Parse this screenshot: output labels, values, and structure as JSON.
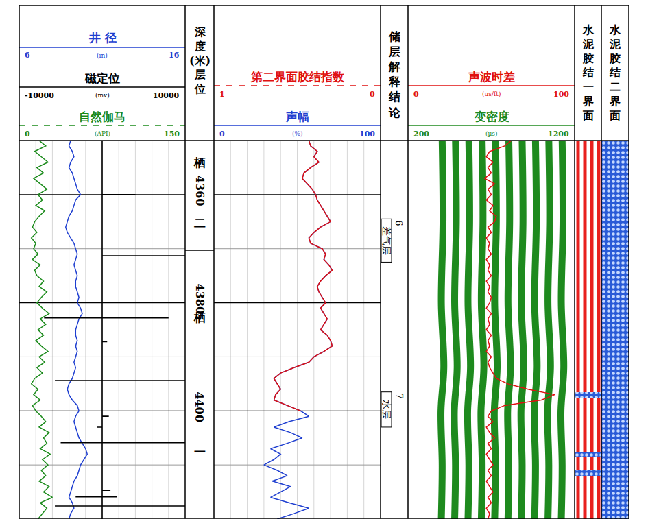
{
  "chart_data": {
    "type": "well_log",
    "ylim": [
      4350,
      4420
    ],
    "yticks": [
      4360,
      4380,
      4400
    ],
    "yticks_minor": [
      4370,
      4390,
      4410
    ],
    "grid": true,
    "depth_title": "深度(米)",
    "zone_title": "层位",
    "depth": [
      4350,
      4351,
      4352,
      4353,
      4354,
      4355,
      4356,
      4357,
      4358,
      4359,
      4360,
      4361,
      4362,
      4363,
      4364,
      4365,
      4366,
      4367,
      4368,
      4369,
      4370,
      4371,
      4372,
      4373,
      4374,
      4375,
      4376,
      4377,
      4378,
      4379,
      4380,
      4381,
      4382,
      4383,
      4384,
      4385,
      4386,
      4387,
      4388,
      4389,
      4390,
      4391,
      4392,
      4393,
      4394,
      4395,
      4396,
      4397,
      4398,
      4399,
      4400,
      4401,
      4402,
      4403,
      4404,
      4405,
      4406,
      4407,
      4408,
      4409,
      4410,
      4411,
      4412,
      4413,
      4414,
      4415,
      4416,
      4417,
      4418,
      4419,
      4420
    ],
    "caliper": {
      "name": "井 径",
      "unit": "(in)",
      "xlim": [
        6,
        16
      ],
      "color": "#1f3fd0",
      "line_style": "solid",
      "values": [
        9.1,
        9.0,
        9.2,
        9.3,
        9.1,
        9.0,
        9.2,
        9.3,
        9.4,
        9.5,
        9.7,
        9.4,
        9.3,
        9.2,
        9.0,
        8.9,
        8.8,
        8.9,
        9.1,
        9.3,
        9.4,
        9.5,
        9.4,
        9.3,
        9.4,
        9.5,
        9.4,
        9.4,
        9.5,
        9.6,
        9.5,
        9.7,
        9.8,
        9.6,
        9.5,
        9.4,
        9.4,
        9.5,
        9.4,
        9.5,
        9.4,
        9.3,
        9.4,
        9.3,
        9.2,
        9.0,
        8.9,
        9.0,
        9.2,
        9.5,
        9.6,
        9.4,
        9.3,
        9.4,
        9.5,
        9.6,
        9.8,
        10.0,
        10.1,
        9.9,
        9.7,
        9.6,
        9.5,
        9.3,
        9.2,
        9.1,
        9.0,
        9.2,
        9.3,
        9.1,
        9.0
      ]
    },
    "ccl": {
      "name": "磁定位",
      "unit": "(mv)",
      "xlim": [
        -10000,
        10000
      ],
      "color": "#000000",
      "line_style": "solid",
      "spike_depths": [
        4360.0,
        4371.3,
        4382.8,
        4382.8,
        4387.2,
        4394.4,
        4394.4,
        4401.0,
        4403.0,
        4405.9,
        4405.9,
        4414.7,
        4415.9,
        4415.9,
        4417.6,
        4417.6
      ],
      "values": [
        4000,
        10000,
        -7000,
        8000,
        600,
        -5700,
        10000,
        800,
        -600,
        -5000,
        10000,
        1000,
        -3200,
        1800,
        -5700,
        10000
      ]
    },
    "gr": {
      "name": "自然伽马",
      "unit": "(API)",
      "xlim": [
        0,
        150
      ],
      "color": "#1a8a1a",
      "line_style": "dash",
      "values": [
        18,
        24,
        14,
        20,
        26,
        16,
        22,
        13,
        19,
        25,
        17,
        21,
        15,
        23,
        18,
        14,
        12,
        16,
        11,
        15,
        13,
        17,
        12,
        19,
        14,
        16,
        22,
        18,
        25,
        20,
        16,
        21,
        27,
        19,
        24,
        17,
        22,
        15,
        20,
        26,
        18,
        23,
        16,
        21,
        14,
        11,
        17,
        13,
        19,
        12,
        15,
        20,
        24,
        18,
        27,
        22,
        25,
        19,
        28,
        21,
        26,
        20,
        24,
        18,
        27,
        22,
        30,
        19,
        25,
        21,
        17
      ]
    },
    "bond_index": {
      "name": "第二界面胶结指数",
      "xlim": [
        1,
        0
      ],
      "color": "#e01010",
      "line_style": "dash",
      "values": [
        0.43,
        0.42,
        0.38,
        0.4,
        0.37,
        0.42,
        0.46,
        0.47,
        0.44,
        0.41,
        0.39,
        0.38,
        0.36,
        0.34,
        0.32,
        0.3,
        0.36,
        0.4,
        0.43,
        0.42,
        0.35,
        0.33,
        0.34,
        0.31,
        0.29,
        0.33,
        0.36,
        0.38,
        0.37,
        0.35,
        0.33,
        0.36,
        0.34,
        0.32,
        0.34,
        0.36,
        0.32,
        0.3,
        0.29,
        0.34,
        0.4,
        0.43,
        0.52,
        0.6,
        0.64,
        0.62,
        0.6,
        0.63,
        0.64,
        0.56,
        0.48,
        null,
        null,
        null,
        null,
        null,
        null,
        null,
        null,
        null,
        null,
        null,
        null,
        null,
        null,
        null,
        null,
        null,
        null,
        null,
        null
      ]
    },
    "amplitude": {
      "name": "声幅",
      "unit": "(%)",
      "xlim": [
        0,
        100
      ],
      "color": "#1f3fd0",
      "line_style": "solid",
      "values": [
        57,
        58,
        62,
        60,
        63,
        58,
        54,
        53,
        56,
        59,
        61,
        62,
        64,
        66,
        68,
        70,
        64,
        60,
        57,
        58,
        65,
        67,
        66,
        69,
        71,
        67,
        64,
        62,
        63,
        65,
        67,
        64,
        66,
        68,
        66,
        64,
        68,
        70,
        71,
        66,
        60,
        57,
        48,
        40,
        36,
        38,
        40,
        37,
        36,
        44,
        52,
        57,
        45,
        36,
        46,
        53,
        44,
        34,
        40,
        36,
        30,
        38,
        44,
        35,
        46,
        40,
        34,
        45,
        57,
        48,
        38
      ]
    },
    "dt": {
      "name": "声波时差",
      "unit": "(us/ft)",
      "xlim": [
        0,
        100
      ],
      "color": "#e01010",
      "line_style": "solid",
      "values": [
        62,
        58,
        49,
        47,
        51,
        48,
        50,
        46,
        52,
        48,
        50,
        47,
        51,
        49,
        53,
        52,
        48,
        50,
        47,
        49,
        48,
        50,
        47,
        49,
        48,
        50,
        47,
        49,
        48,
        50,
        49,
        47,
        50,
        48,
        49,
        47,
        50,
        48,
        49,
        47,
        50,
        48,
        49,
        51,
        53,
        60,
        72,
        88,
        80,
        58,
        50,
        48,
        51,
        47,
        49,
        52,
        48,
        50,
        47,
        49,
        51,
        48,
        50,
        47,
        49,
        51,
        48,
        50,
        47,
        49,
        48
      ]
    },
    "vdl": {
      "name": "变密度",
      "unit": "(µs)",
      "xlim": [
        200,
        1200
      ],
      "color": "#1e8a1e",
      "line_style": "solid",
      "depth": [
        4350,
        4365,
        4380,
        4392,
        4400,
        4410,
        4420
      ],
      "stripes": [
        [
          405,
          410,
          400,
          415,
          398,
          405,
          400
        ],
        [
          485,
          490,
          480,
          495,
          478,
          485,
          480
        ],
        [
          565,
          570,
          560,
          575,
          558,
          565,
          560
        ],
        [
          645,
          650,
          640,
          655,
          638,
          645,
          640
        ],
        [
          725,
          730,
          720,
          735,
          718,
          725,
          720
        ],
        [
          805,
          810,
          800,
          815,
          798,
          805,
          800
        ],
        [
          885,
          890,
          880,
          895,
          878,
          885,
          880
        ],
        [
          965,
          970,
          960,
          975,
          958,
          965,
          960
        ],
        [
          1045,
          1050,
          1040,
          1055,
          1038,
          1045,
          1040
        ],
        [
          1125,
          1130,
          1120,
          1135,
          1118,
          1125,
          1120
        ]
      ]
    },
    "formations": [
      {
        "name": "栖二",
        "top": 4350,
        "bottom": 4370.3
      },
      {
        "name": "栖一",
        "top": 4370.3,
        "bottom": 4420
      }
    ],
    "interpretation": {
      "title": "储层解释结论",
      "layers": [
        {
          "number": "6",
          "label": "差气层",
          "top": 4364.5,
          "bottom": 4372.5
        },
        {
          "number": "7",
          "label": "水层",
          "top": 4396.5,
          "bottom": 4403
        }
      ]
    },
    "bond1": {
      "title": "水泥胶结一界面",
      "intervals": [
        {
          "top": 4350,
          "bottom": 4396.6,
          "marker": "stripes",
          "color": "#e8201e"
        },
        {
          "top": 4396.6,
          "bottom": 4397.6,
          "marker": "dots",
          "color": "#2a5bd7"
        },
        {
          "top": 4397.6,
          "bottom": 4407.6,
          "marker": "stripes",
          "color": "#e8201e"
        },
        {
          "top": 4407.6,
          "bottom": 4408.5,
          "marker": "dots",
          "color": "#2a5bd7"
        },
        {
          "top": 4408.5,
          "bottom": 4411.0,
          "marker": "stripes",
          "color": "#e8201e"
        },
        {
          "top": 4411.0,
          "bottom": 4412.0,
          "marker": "dots",
          "color": "#2a5bd7"
        },
        {
          "top": 4412.0,
          "bottom": 4420,
          "marker": "stripes",
          "color": "#e8201e"
        }
      ]
    },
    "bond2": {
      "title": "水泥胶结二界面",
      "intervals": [
        {
          "top": 4350,
          "bottom": 4420,
          "marker": "dots",
          "color": "#2a5bd7"
        }
      ]
    }
  }
}
